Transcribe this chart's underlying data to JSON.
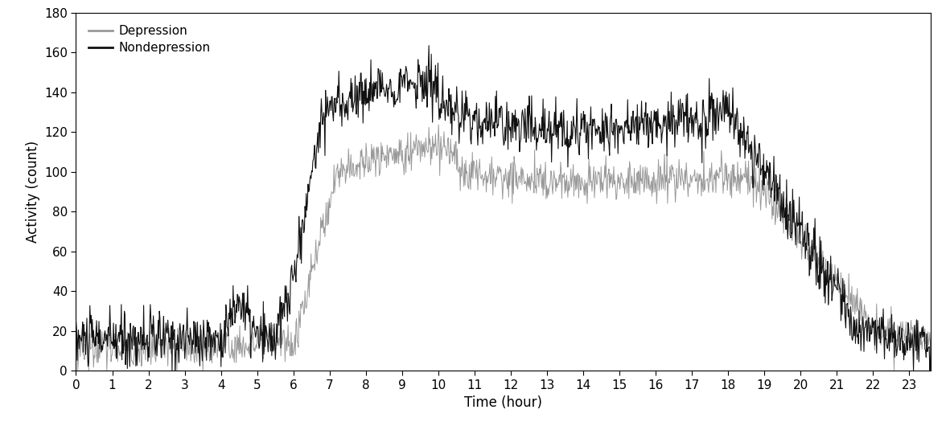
{
  "title": "",
  "xlabel": "Time (hour)",
  "ylabel": "Activity (count)",
  "ylim": [
    0,
    180
  ],
  "yticks": [
    0,
    20,
    40,
    60,
    80,
    100,
    120,
    140,
    160,
    180
  ],
  "xticks": [
    0,
    1,
    2,
    3,
    4,
    5,
    6,
    7,
    8,
    9,
    10,
    11,
    12,
    13,
    14,
    15,
    16,
    17,
    18,
    19,
    20,
    21,
    22,
    23
  ],
  "xlim": [
    0,
    23.6
  ],
  "depression_color": "#999999",
  "nondepression_color": "#111111",
  "depression_label": "Depression",
  "nondepression_label": "Nondepression",
  "linewidth_dep": 0.7,
  "linewidth_nondep": 0.8,
  "background_color": "#ffffff",
  "legend_fontsize": 11,
  "axis_fontsize": 12,
  "tick_fontsize": 11,
  "nondep_peak": 130,
  "dep_peak": 100,
  "noise_dep": 5,
  "noise_nondep": 7,
  "n_points": 1440
}
